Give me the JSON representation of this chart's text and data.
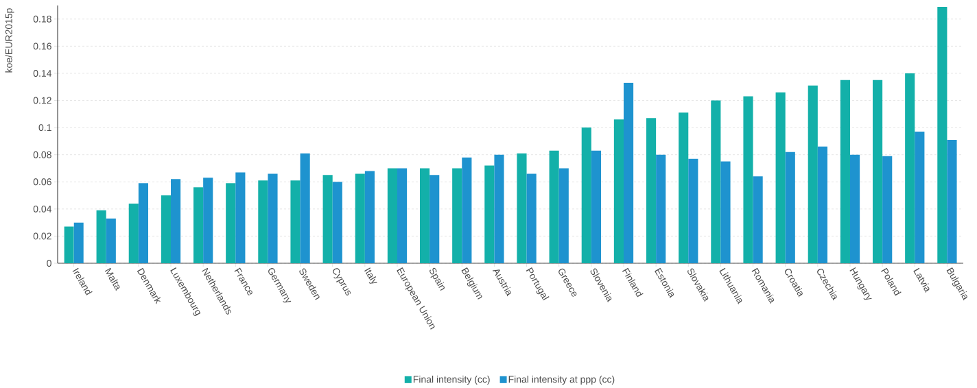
{
  "chart_data": {
    "type": "bar",
    "ylabel": "koe/EUR2015p",
    "categories": [
      "Ireland",
      "Malta",
      "Denmark",
      "Luxembourg",
      "Netherlands",
      "France",
      "Germany",
      "Sweden",
      "Cyprus",
      "Italy",
      "European Union",
      "Spain",
      "Belgium",
      "Austria",
      "Portugal",
      "Greece",
      "Slovenia",
      "Finland",
      "Estonia",
      "Slovakia",
      "Lithuania",
      "Romania",
      "Croatia",
      "Czechia",
      "Hungary",
      "Poland",
      "Latvia",
      "Bulgaria"
    ],
    "series": [
      {
        "name": "Final intensity (cc)",
        "color": "#13b0a9",
        "values": [
          0.027,
          0.039,
          0.044,
          0.05,
          0.056,
          0.059,
          0.061,
          0.061,
          0.065,
          0.066,
          0.07,
          0.07,
          0.07,
          0.072,
          0.081,
          0.083,
          0.1,
          0.106,
          0.107,
          0.111,
          0.12,
          0.123,
          0.126,
          0.131,
          0.135,
          0.135,
          0.14,
          0.189
        ]
      },
      {
        "name": "Final intensity at ppp (cc)",
        "color": "#1e93cf",
        "values": [
          0.03,
          0.033,
          0.059,
          0.062,
          0.063,
          0.067,
          0.066,
          0.081,
          0.06,
          0.068,
          0.07,
          0.065,
          0.078,
          0.08,
          0.066,
          0.07,
          0.083,
          0.133,
          0.08,
          0.077,
          0.075,
          0.064,
          0.082,
          0.086,
          0.08,
          0.079,
          0.097,
          0.091
        ]
      }
    ],
    "ylim": [
      0,
      0.19
    ],
    "yticks": [
      0,
      0.02,
      0.04,
      0.06,
      0.08,
      0.1,
      0.12,
      0.14,
      0.16,
      0.18
    ],
    "grid": "y",
    "legend": "bottom"
  }
}
